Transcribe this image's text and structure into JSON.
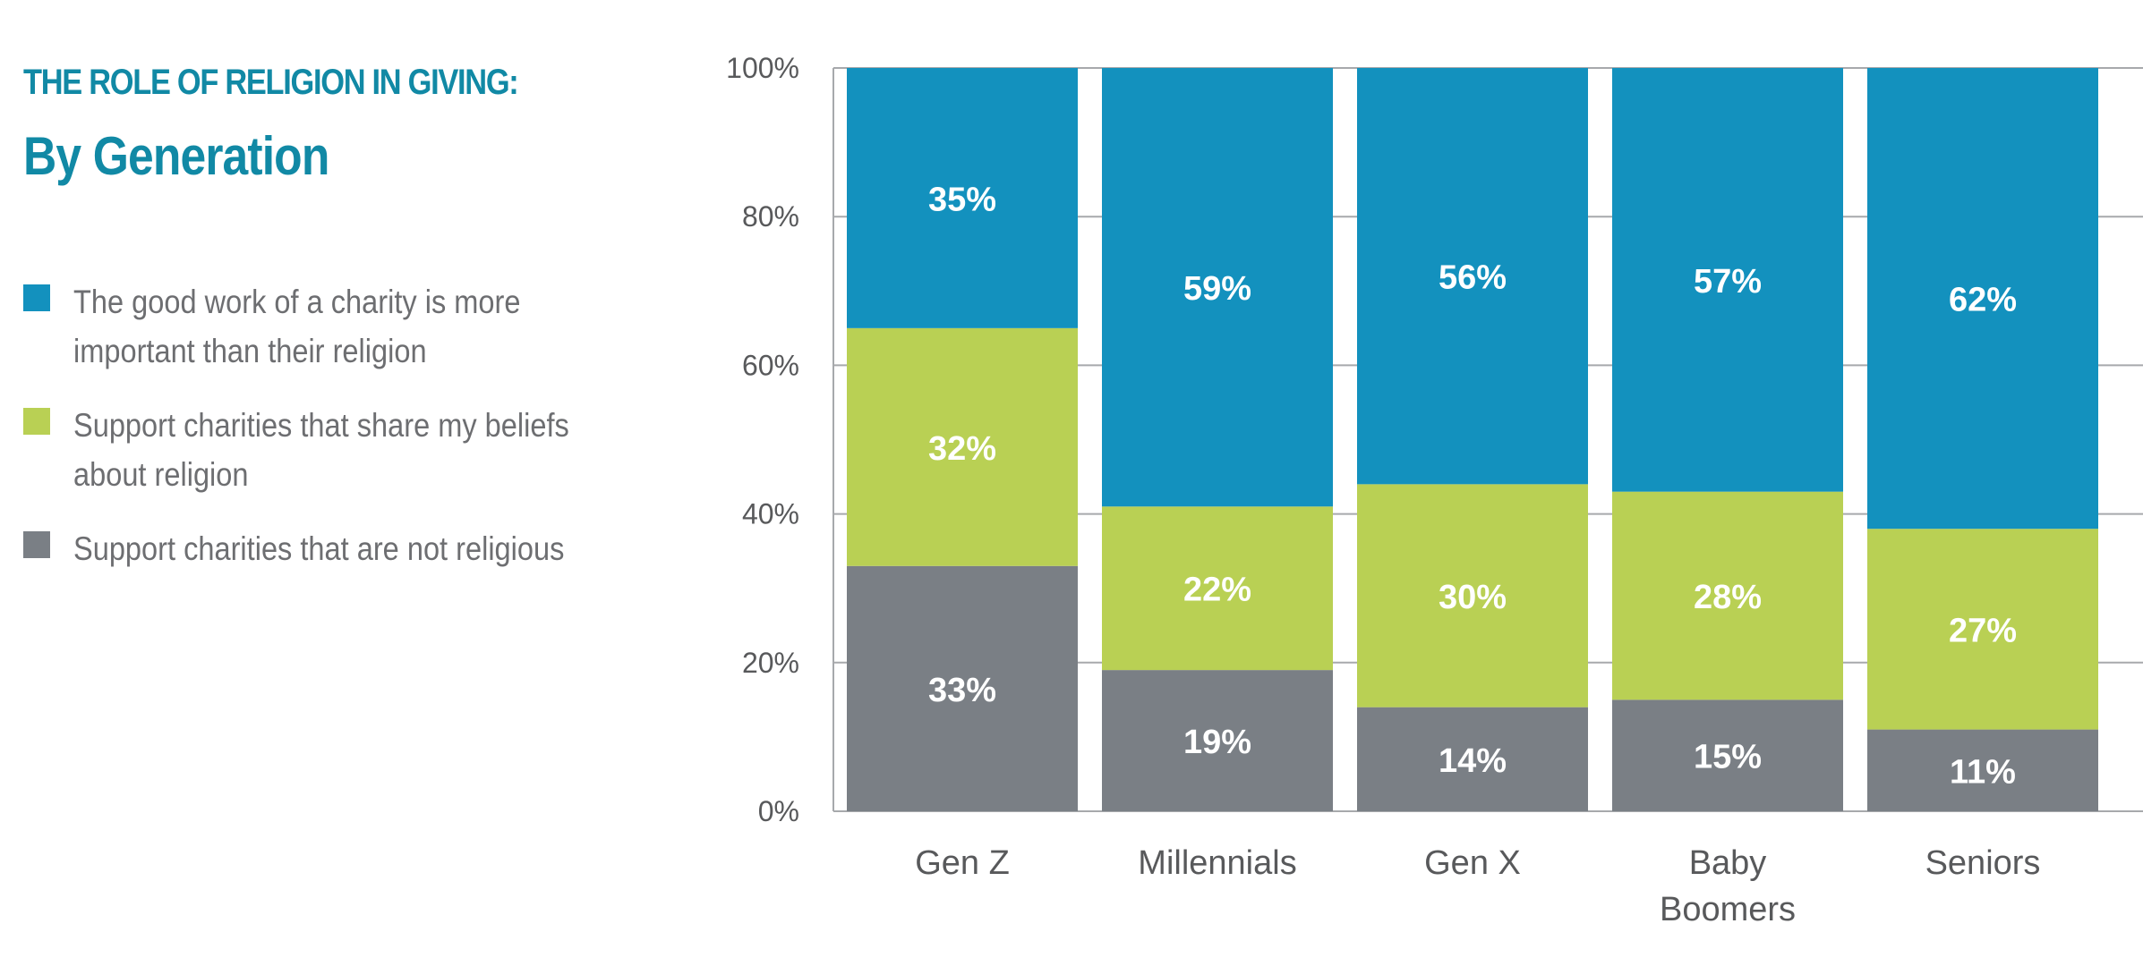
{
  "title": "THE ROLE OF RELIGION IN GIVING:",
  "subtitle": "By Generation",
  "legend": [
    {
      "label": "The good work of a charity is more important than their religion",
      "color": "#1391BE"
    },
    {
      "label": "Support charities that share my beliefs about religion",
      "color": "#B9D054"
    },
    {
      "label": "Support charities that are not religious",
      "color": "#7A7F85"
    }
  ],
  "chart_data": {
    "type": "bar",
    "stacked": true,
    "categories": [
      "Gen Z",
      "Millennials",
      "Gen X",
      "Baby Boomers",
      "Seniors"
    ],
    "series": [
      {
        "name": "Support charities that are not religious",
        "values": [
          33,
          19,
          14,
          15,
          11
        ],
        "color": "#7A7F85"
      },
      {
        "name": "Support charities that share my beliefs about religion",
        "values": [
          32,
          22,
          30,
          28,
          27
        ],
        "color": "#B9D054"
      },
      {
        "name": "The good work of a charity is more important than their religion",
        "values": [
          35,
          59,
          56,
          57,
          62
        ],
        "color": "#1391BE"
      }
    ],
    "data_labels": {
      "Support charities that are not religious": [
        "33%",
        "19%",
        "14%",
        "15%",
        "11%"
      ],
      "Support charities that share my beliefs about religion": [
        "32%",
        "22%",
        "30%",
        "28%",
        "27%"
      ],
      "The good work of a charity is more important than their religion": [
        "35%",
        "59%",
        "56%",
        "57%",
        "62%"
      ]
    },
    "yticks": [
      "0%",
      "20%",
      "40%",
      "60%",
      "80%",
      "100%"
    ],
    "ylim": [
      0,
      100
    ],
    "grid": true,
    "legend_position": "left",
    "title": "THE ROLE OF RELIGION IN GIVING: By Generation",
    "xlabel": "",
    "ylabel": ""
  }
}
